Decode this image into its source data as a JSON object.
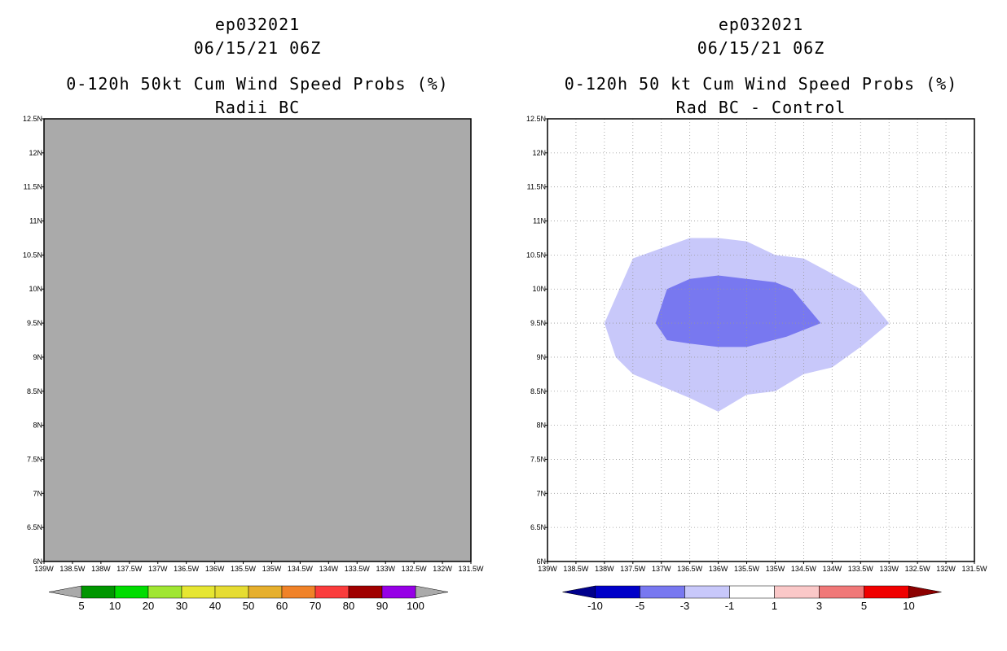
{
  "panels": [
    {
      "title1": "ep032021",
      "title2": "06/15/21 06Z",
      "title3": "0-120h 50kt Cum Wind Speed Probs (%)",
      "title4": "Radii BC",
      "background": "#aaaaaa"
    },
    {
      "title1": "ep032021",
      "title2": "06/15/21 06Z",
      "title3": "0-120h 50 kt Cum Wind Speed Probs (%)",
      "title4": "Rad BC - Control",
      "background": "#ffffff"
    }
  ],
  "chart_data": [
    {
      "type": "heatmap",
      "title": "0-120h 50kt Cum Wind Speed Probs (%)",
      "subtitle": "Radii BC",
      "xlim": [
        -139,
        -131.5
      ],
      "ylim": [
        6,
        12.5
      ],
      "x_ticks": [
        "139W",
        "138.5W",
        "138W",
        "137.5W",
        "137W",
        "136.5W",
        "136W",
        "135.5W",
        "135W",
        "134.5W",
        "134W",
        "133.5W",
        "133W",
        "132.5W",
        "132W",
        "131.5W"
      ],
      "y_ticks": [
        "6N",
        "6.5N",
        "7N",
        "7.5N",
        "8N",
        "8.5N",
        "9N",
        "9.5N",
        "10N",
        "10.5N",
        "11N",
        "11.5N",
        "12N",
        "12.5N"
      ],
      "field": "missing (uniform grey)",
      "colorbar": {
        "labels": [
          "5",
          "10",
          "20",
          "30",
          "40",
          "50",
          "60",
          "70",
          "80",
          "90",
          "100"
        ],
        "colors": [
          "#009600",
          "#00dc00",
          "#a0e632",
          "#e6e632",
          "#e6dc32",
          "#e6af2d",
          "#f08228",
          "#fa3c3c",
          "#a00000",
          "#9600e6"
        ],
        "end_color": "#aaaaaa"
      }
    },
    {
      "type": "heatmap",
      "title": "0-120h 50 kt Cum Wind Speed Probs (%)",
      "subtitle": "Rad BC - Control",
      "xlim": [
        -139,
        -131.5
      ],
      "ylim": [
        6,
        12.5
      ],
      "grid": true,
      "x_ticks": [
        "139W",
        "138.5W",
        "138W",
        "137.5W",
        "137W",
        "136.5W",
        "136W",
        "135.5W",
        "135W",
        "134.5W",
        "134W",
        "133.5W",
        "133W",
        "132.5W",
        "132W",
        "131.5W"
      ],
      "y_ticks": [
        "6N",
        "6.5N",
        "7N",
        "7.5N",
        "8N",
        "8.5N",
        "9N",
        "9.5N",
        "10N",
        "10.5N",
        "11N",
        "11.5N",
        "12N",
        "12.5N"
      ],
      "contours": [
        {
          "level": "-3 to -1",
          "color": "#c8c8fa",
          "points": [
            [
              -138,
              9.5
            ],
            [
              -137.5,
              10.45
            ],
            [
              -136.5,
              10.75
            ],
            [
              -136,
              10.75
            ],
            [
              -135.5,
              10.7
            ],
            [
              -135,
              10.5
            ],
            [
              -134.5,
              10.45
            ],
            [
              -133.5,
              10.0
            ],
            [
              -133,
              9.5
            ],
            [
              -133.5,
              9.15
            ],
            [
              -134,
              8.85
            ],
            [
              -134.5,
              8.75
            ],
            [
              -135,
              8.5
            ],
            [
              -135.5,
              8.45
            ],
            [
              -136,
              8.2
            ],
            [
              -136.5,
              8.4
            ],
            [
              -137.5,
              8.75
            ],
            [
              -137.8,
              9.0
            ]
          ]
        },
        {
          "level": "-5 to -3",
          "color": "#7878f0",
          "points": [
            [
              -137.1,
              9.5
            ],
            [
              -136.9,
              10.0
            ],
            [
              -136.5,
              10.15
            ],
            [
              -136,
              10.2
            ],
            [
              -135.5,
              10.15
            ],
            [
              -135,
              10.1
            ],
            [
              -134.7,
              10.0
            ],
            [
              -134.5,
              9.8
            ],
            [
              -134.2,
              9.5
            ],
            [
              -134.8,
              9.3
            ],
            [
              -135.5,
              9.15
            ],
            [
              -136,
              9.15
            ],
            [
              -136.5,
              9.2
            ],
            [
              -136.9,
              9.25
            ]
          ]
        }
      ],
      "colorbar": {
        "labels": [
          "-10",
          "-5",
          "-3",
          "-1",
          "1",
          "3",
          "5",
          "10"
        ],
        "colors": [
          "#0000c8",
          "#7878f0",
          "#c8c8fa",
          "#ffffff",
          "#fac8c8",
          "#f07878",
          "#f00000"
        ],
        "left_end_color": "#00008c",
        "right_end_color": "#8c0000"
      }
    }
  ]
}
